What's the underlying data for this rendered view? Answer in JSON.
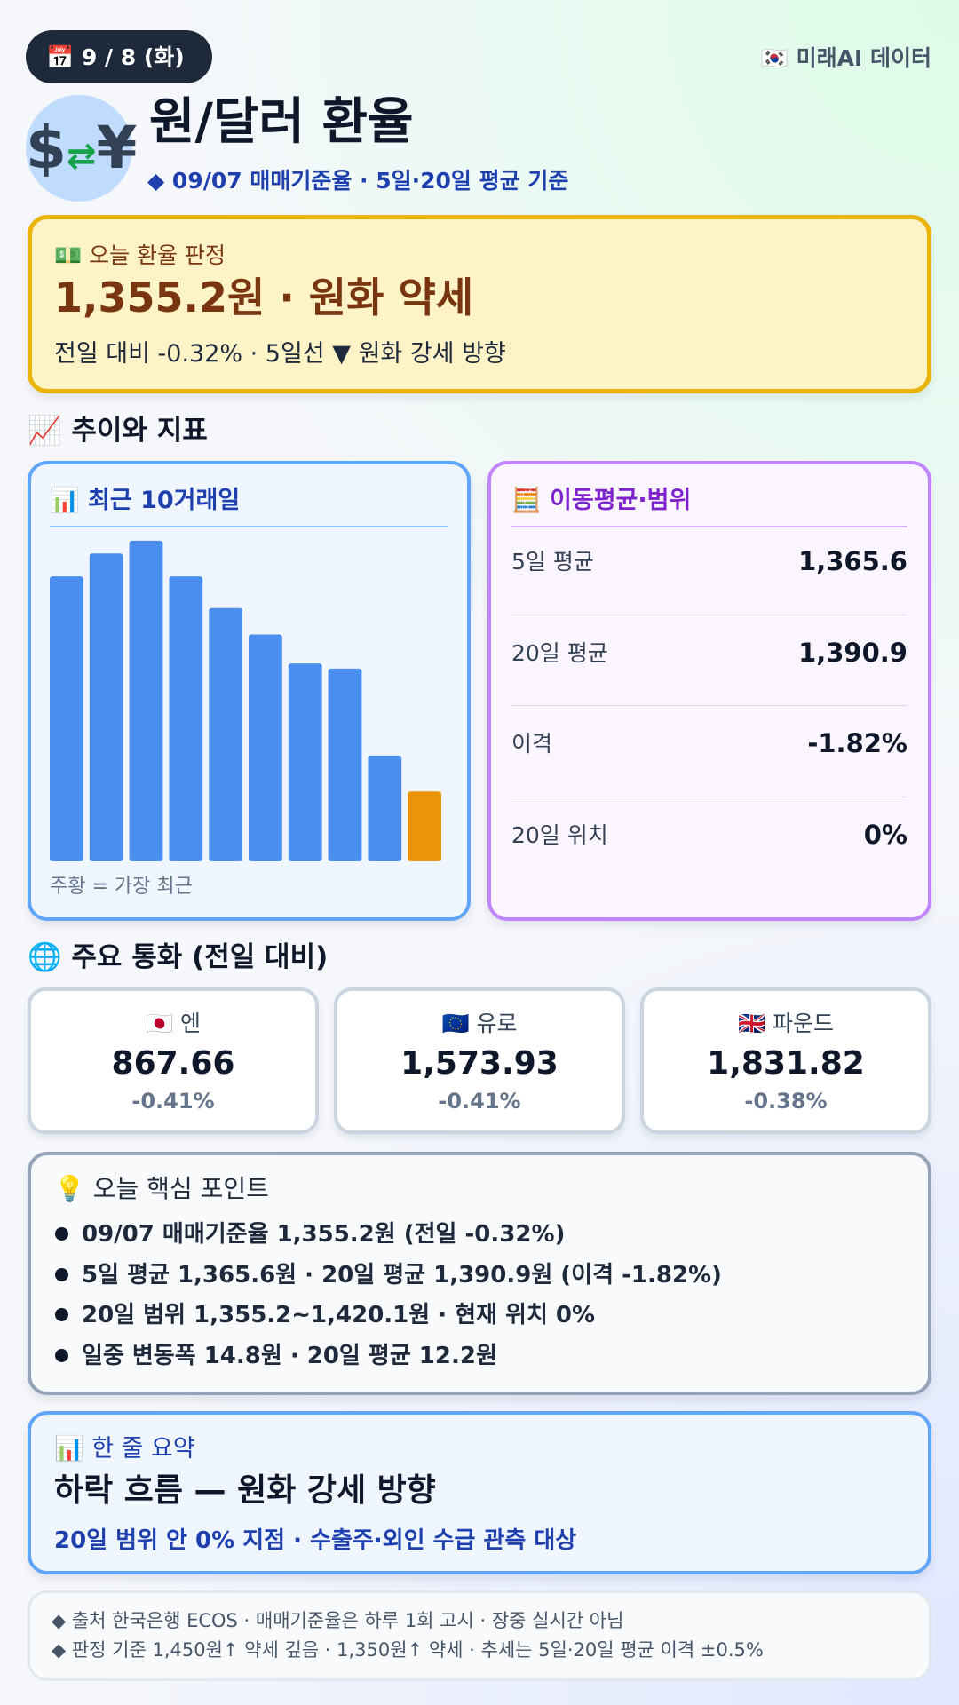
{
  "header": {
    "date": "📅 9 / 8 (화)",
    "source": "🇰🇷 미래AI 데이터",
    "title": "원/달러 환율",
    "subtitle": "◆ 09/07 매매기준율 · 5일·20일 평균 기준"
  },
  "verdict": {
    "label": "💵 오늘 환율 판정",
    "headline": "1,355.2원 · 원화 약세",
    "detail": "전일 대비 -0.32% · 5일선 ▼ 원화 강세 방향"
  },
  "trend_heading": "📈 추이와 지표",
  "chart_data": {
    "type": "bar",
    "title": "📊 최근 10거래일",
    "values": [
      1380.4,
      1383.1,
      1384.6,
      1380.4,
      1376.7,
      1373.6,
      1370.2,
      1369.6,
      1359.4,
      1355.2
    ],
    "colors": [
      "#4a8ff0",
      "#4a8ff0",
      "#4a8ff0",
      "#4a8ff0",
      "#4a8ff0",
      "#4a8ff0",
      "#4a8ff0",
      "#4a8ff0",
      "#4a8ff0",
      "#ea940c"
    ],
    "ylim": [
      1347,
      1385
    ],
    "caption": "주황 = 가장 최근"
  },
  "averages": {
    "title": "🧮 이동평균·범위",
    "rows": [
      {
        "label": "5일 평균",
        "value": "1,365.6"
      },
      {
        "label": "20일 평균",
        "value": "1,390.9"
      },
      {
        "label": "이격",
        "value": "-1.82%"
      },
      {
        "label": "20일 위치",
        "value": "0%"
      }
    ]
  },
  "currencies_heading": "🌐 주요 통화 (전일 대비)",
  "currencies": [
    {
      "name": "🇯🇵 엔",
      "value": "867.66",
      "change": "-0.41%"
    },
    {
      "name": "🇪🇺 유로",
      "value": "1,573.93",
      "change": "-0.41%"
    },
    {
      "name": "🇬🇧 파운드",
      "value": "1,831.82",
      "change": "-0.38%"
    }
  ],
  "points": {
    "title": "💡 오늘 핵심 포인트",
    "items": [
      "09/07 매매기준율 1,355.2원 (전일 -0.32%)",
      "5일 평균 1,365.6원 · 20일 평균 1,390.9원 (이격 -1.82%)",
      "20일 범위 1,355.2~1,420.1원 · 현재 위치 0%",
      "일중 변동폭 14.8원 · 20일 평균 12.2원"
    ]
  },
  "summary": {
    "title": "📊 한 줄 요약",
    "headline": "하락 흐름 — 원화 강세 방향",
    "detail": "20일 범위 안 0% 지점 · 수출주·외인 수급 관측 대상"
  },
  "footer": [
    "◆ 출처 한국은행 ECOS · 매매기준율은 하루 1회 고시 · 장중 실시간 아님",
    "◆ 판정 기준 1,450원↑ 약세 깊음 · 1,350원↑ 약세 · 추세는 5일·20일 평균 이격 ±0.5%"
  ]
}
